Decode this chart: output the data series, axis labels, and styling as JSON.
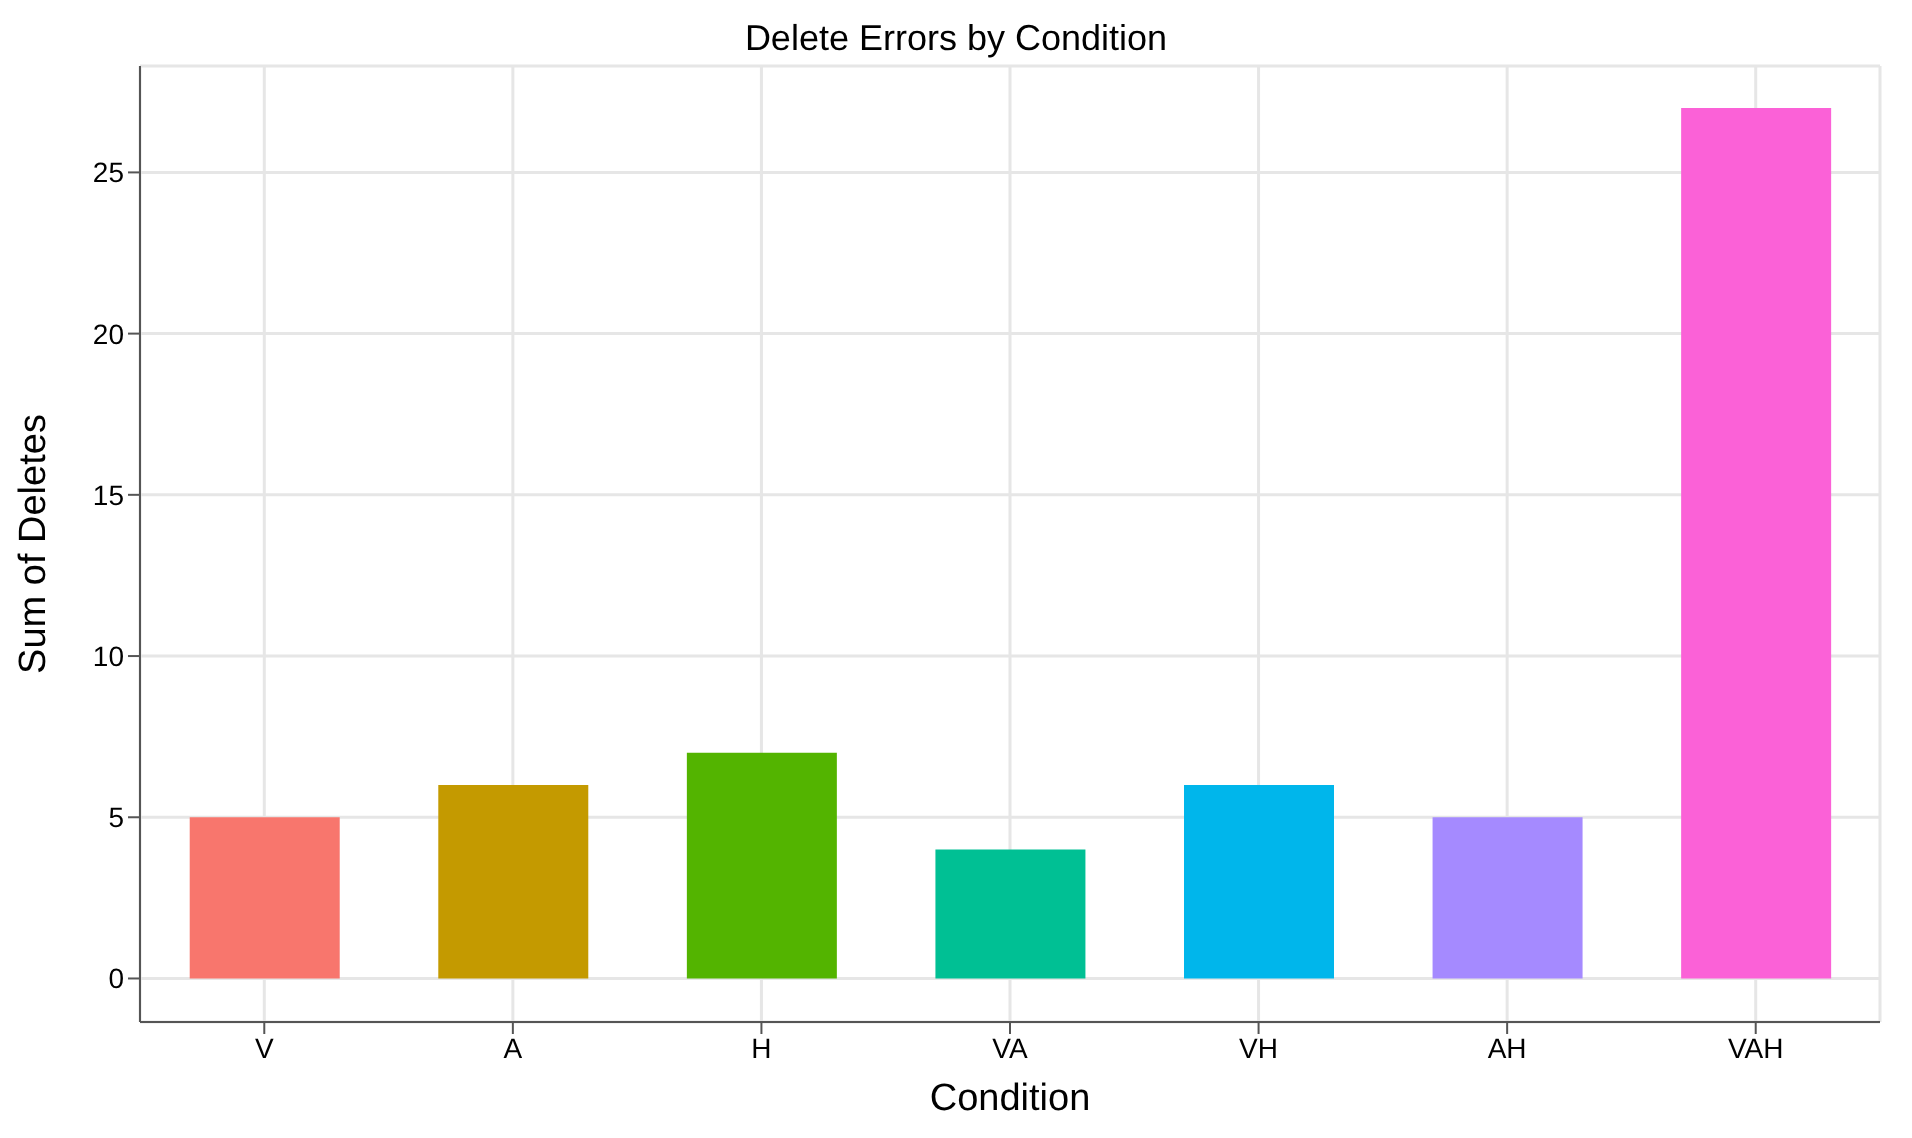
{
  "chart_data": {
    "type": "bar",
    "title": "Delete Errors by Condition",
    "xlabel": "Condition",
    "ylabel": "Sum of Deletes",
    "categories": [
      "V",
      "A",
      "H",
      "VA",
      "VH",
      "AH",
      "VAH"
    ],
    "values": [
      5,
      6,
      7,
      4,
      6,
      5,
      27
    ],
    "colors": [
      "#f8766d",
      "#c49a00",
      "#53b400",
      "#00c094",
      "#00b6eb",
      "#a58aff",
      "#fb61d7"
    ],
    "ylim": [
      -1.35,
      28.3
    ],
    "yticks": [
      0,
      5,
      10,
      15,
      20,
      25
    ],
    "grid": true,
    "legend": false
  }
}
